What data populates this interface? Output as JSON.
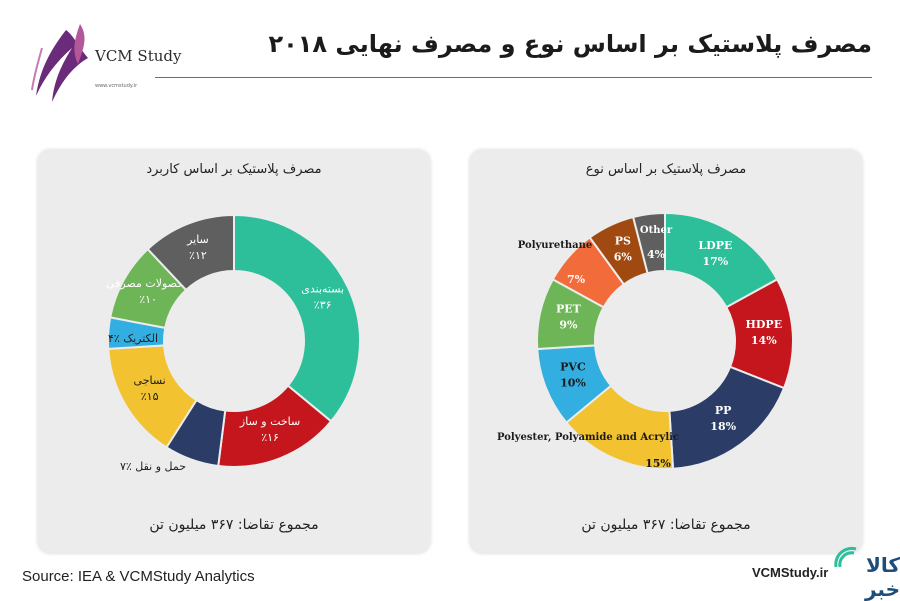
{
  "header": {
    "title": "مصرف پلاستیک بر اساس نوع و مصرف نهایی ۲۰۱۸",
    "logo_text": "VCM Study",
    "logo_url": "www.vcmstudy.ir"
  },
  "footer": {
    "source": "Source: IEA & VCMStudy Analytics",
    "site": "VCMStudy.ir",
    "corner_logo_text": "کالا خبر"
  },
  "chart_data": [
    {
      "type": "pie",
      "title": "مصرف پلاستیک بر اساس کاربرد",
      "total_label": "مجموع تقاضا: ۳۶۷ میلیون تن",
      "slices": [
        {
          "name": "بسته‌بندی",
          "value": 36,
          "label": "٪۳۶",
          "color": "#2dbf9a"
        },
        {
          "name": "ساخت و ساز",
          "value": 16,
          "label": "٪۱۶",
          "color": "#c4161c"
        },
        {
          "name": "حمل و نقل",
          "value": 7,
          "label": "حمل و نقل ٪۷",
          "color": "#2b3d67"
        },
        {
          "name": "نساجی",
          "value": 15,
          "label": "٪۱۵",
          "color": "#f2c230"
        },
        {
          "name": "الکتریک",
          "value": 4,
          "label": "الکتریک ٪۴",
          "color": "#33aee0"
        },
        {
          "name": "محصولات مصرفی",
          "value": 10,
          "label": "٪۱۰",
          "color": "#6db556"
        },
        {
          "name": "سایر",
          "value": 12,
          "label": "٪۱۲",
          "color": "#5f5f5f"
        }
      ]
    },
    {
      "type": "pie",
      "title": "مصرف پلاستیک بر اساس نوع",
      "total_label": "مجموع تقاضا: ۳۶۷ میلیون تن",
      "slices": [
        {
          "name": "LDPE",
          "value": 17,
          "label": "17%",
          "color": "#2dbf9a"
        },
        {
          "name": "HDPE",
          "value": 14,
          "label": "14%",
          "color": "#c4161c"
        },
        {
          "name": "PP",
          "value": 18,
          "label": "18%",
          "color": "#2b3d67"
        },
        {
          "name": "Polyester, Polyamide and Acrylic",
          "value": 15,
          "label": "15%",
          "color": "#f2c230"
        },
        {
          "name": "PVC",
          "value": 10,
          "label": "10%",
          "color": "#33aee0"
        },
        {
          "name": "PET",
          "value": 9,
          "label": "9%",
          "color": "#6db556"
        },
        {
          "name": "Polyurethane",
          "value": 7,
          "label": "7%",
          "color": "#f26b3a"
        },
        {
          "name": "PS",
          "value": 6,
          "label": "6%",
          "color": "#a04a12"
        },
        {
          "name": "Other",
          "value": 4,
          "label": "4%",
          "color": "#5f5f5f"
        }
      ]
    }
  ]
}
